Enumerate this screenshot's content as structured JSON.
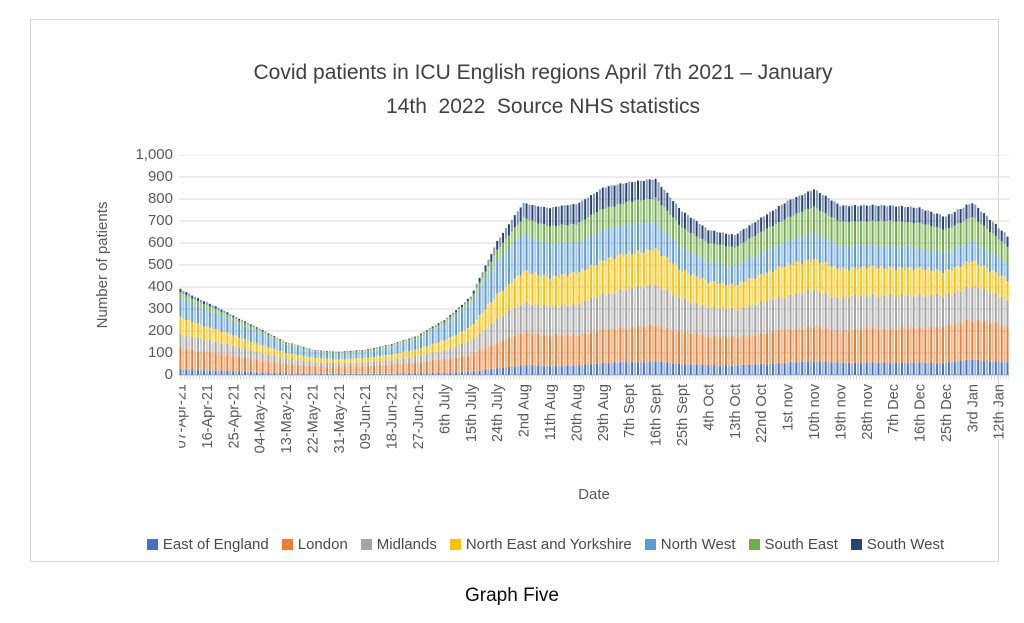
{
  "chart": {
    "title": "Covid patients in ICU English regions April 7th 2021 – January\n14th  2022  Source NHS statistics",
    "y_axis": {
      "label": "Number of patients",
      "tick_labels": [
        "0",
        "100",
        "200",
        "300",
        "400",
        "500",
        "600",
        "700",
        "800",
        "900",
        "1,000"
      ]
    },
    "x_axis": {
      "label": "Date"
    }
  },
  "caption": "Graph Five",
  "chart_data": {
    "type": "bar",
    "stacked": true,
    "title": "Covid patients in ICU English regions April 7th 2021 – January 14th 2022 Source NHS statistics",
    "xlabel": "Date",
    "ylabel": "Number of patients",
    "ylim": [
      0,
      1000
    ],
    "y_gridline_step": 100,
    "grid": true,
    "legend_position": "bottom",
    "days_total": 283,
    "label_interval_days": 9,
    "x_tick_labels": [
      "07-Apr-21",
      "16-Apr-21",
      "25-Apr-21",
      "04-May-21",
      "13-May-21",
      "22-May-21",
      "31-May-21",
      "09-Jun-21",
      "18-Jun-21",
      "27-Jun-21",
      "6th July",
      "15th July",
      "24th July",
      "2nd Aug",
      "11th Aug",
      "20th Aug",
      "29th Aug",
      "7th Sept",
      "16th Sept",
      "25th Sept",
      "4th Oct",
      "13th Oct",
      "22nd Oct",
      "1st nov",
      "10th nov",
      "19th nov",
      "28th nov",
      "7th Dec",
      "16th Dec",
      "25th Dec",
      "3rd Jan",
      "12th Jan"
    ],
    "series": [
      {
        "name": "East of England",
        "color": "#4472C4",
        "values": [
          25,
          22,
          18,
          12,
          8,
          6,
          5,
          5,
          6,
          8,
          10,
          14,
          30,
          45,
          40,
          42,
          55,
          58,
          60,
          50,
          45,
          42,
          50,
          55,
          62,
          55,
          56,
          55,
          56,
          55,
          70,
          60
        ]
      },
      {
        "name": "London",
        "color": "#ED7D31",
        "values": [
          95,
          82,
          70,
          55,
          42,
          35,
          33,
          36,
          42,
          50,
          62,
          80,
          120,
          150,
          140,
          140,
          150,
          160,
          165,
          145,
          135,
          130,
          140,
          150,
          158,
          145,
          155,
          155,
          160,
          165,
          185,
          170
        ]
      },
      {
        "name": "Midlands",
        "color": "#A5A5A5",
        "values": [
          65,
          55,
          45,
          35,
          25,
          18,
          15,
          16,
          20,
          28,
          40,
          60,
          105,
          135,
          130,
          140,
          160,
          175,
          185,
          150,
          130,
          125,
          140,
          155,
          165,
          150,
          152,
          150,
          148,
          140,
          150,
          130
        ]
      },
      {
        "name": "North East and Yorkshire",
        "color": "#FFC000",
        "values": [
          75,
          60,
          48,
          36,
          26,
          20,
          18,
          20,
          25,
          32,
          45,
          65,
          110,
          140,
          135,
          140,
          155,
          160,
          160,
          130,
          115,
          110,
          125,
          140,
          140,
          130,
          128,
          125,
          120,
          110,
          115,
          95
        ]
      },
      {
        "name": "North West",
        "color": "#5B9BD5",
        "values": [
          90,
          78,
          65,
          52,
          38,
          28,
          25,
          28,
          36,
          48,
          70,
          105,
          160,
          170,
          150,
          140,
          140,
          135,
          125,
          100,
          90,
          88,
          100,
          110,
          120,
          105,
          100,
          100,
          95,
          85,
          90,
          75
        ]
      },
      {
        "name": "South East",
        "color": "#70AD47",
        "values": [
          25,
          20,
          17,
          13,
          8,
          6,
          6,
          7,
          8,
          10,
          15,
          20,
          45,
          75,
          80,
          85,
          95,
          100,
          110,
          95,
          85,
          85,
          95,
          105,
          120,
          110,
          110,
          115,
          112,
          105,
          110,
          90
        ]
      },
      {
        "name": "South West",
        "color": "#264478",
        "values": [
          15,
          13,
          8,
          7,
          3,
          2,
          3,
          3,
          3,
          4,
          8,
          11,
          40,
          65,
          85,
          90,
          95,
          90,
          85,
          75,
          60,
          55,
          65,
          75,
          80,
          75,
          70,
          70,
          68,
          60,
          65,
          50
        ]
      }
    ]
  }
}
